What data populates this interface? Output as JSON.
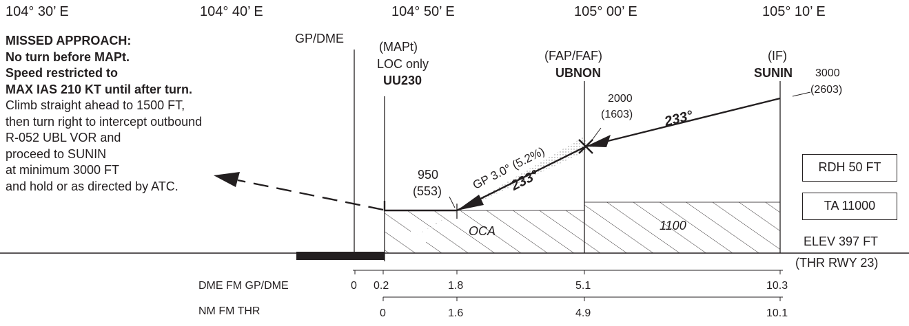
{
  "longitudes": [
    "104° 30’ E",
    "104° 40’ E",
    "104° 50’ E",
    "105° 00’ E",
    "105° 10’ E"
  ],
  "missed_approach": {
    "bold_lines": [
      "MISSED APPROACH:",
      "No turn before MAPt.",
      "Speed restricted to",
      "MAX IAS 210 KT until after turn."
    ],
    "lines": [
      "Climb straight ahead to 1500 FT,",
      "then turn right to intercept outbound",
      "R-052 UBL VOR and",
      "proceed to SUNIN",
      "at minimum 3000 FT",
      "and hold or as directed by ATC."
    ]
  },
  "gp_dme": "GP/DME",
  "mapt": {
    "type": "(MAPt)",
    "note": "LOC only",
    "name": "UU230",
    "alt": "950",
    "height": "(553)"
  },
  "faf": {
    "type": "(FAP/FAF)",
    "name": "UBNON",
    "alt": "2000",
    "height": "(1603)"
  },
  "if_fix": {
    "type": "(IF)",
    "name": "SUNIN",
    "alt": "3000",
    "height": "(2603)"
  },
  "tracks": {
    "outer": "233°",
    "inner": "233°"
  },
  "glidepath": "GP 3.0° (5.2%)",
  "boxes": {
    "rdh": "RDH 50 FT",
    "ta": "TA 11000"
  },
  "elevation": {
    "elev": "ELEV 397 FT",
    "thr": "(THR RWY 23)"
  },
  "segments": {
    "oca": "OCA",
    "alt_1100": "1100"
  },
  "scales": {
    "dme_label": "DME FM GP/DME",
    "dme_values": [
      "0",
      "0.2",
      "1.8",
      "5.1",
      "10.3"
    ],
    "nm_label": "NM FM THR",
    "nm_values": [
      "0",
      "1.6",
      "4.9",
      "10.1"
    ]
  }
}
